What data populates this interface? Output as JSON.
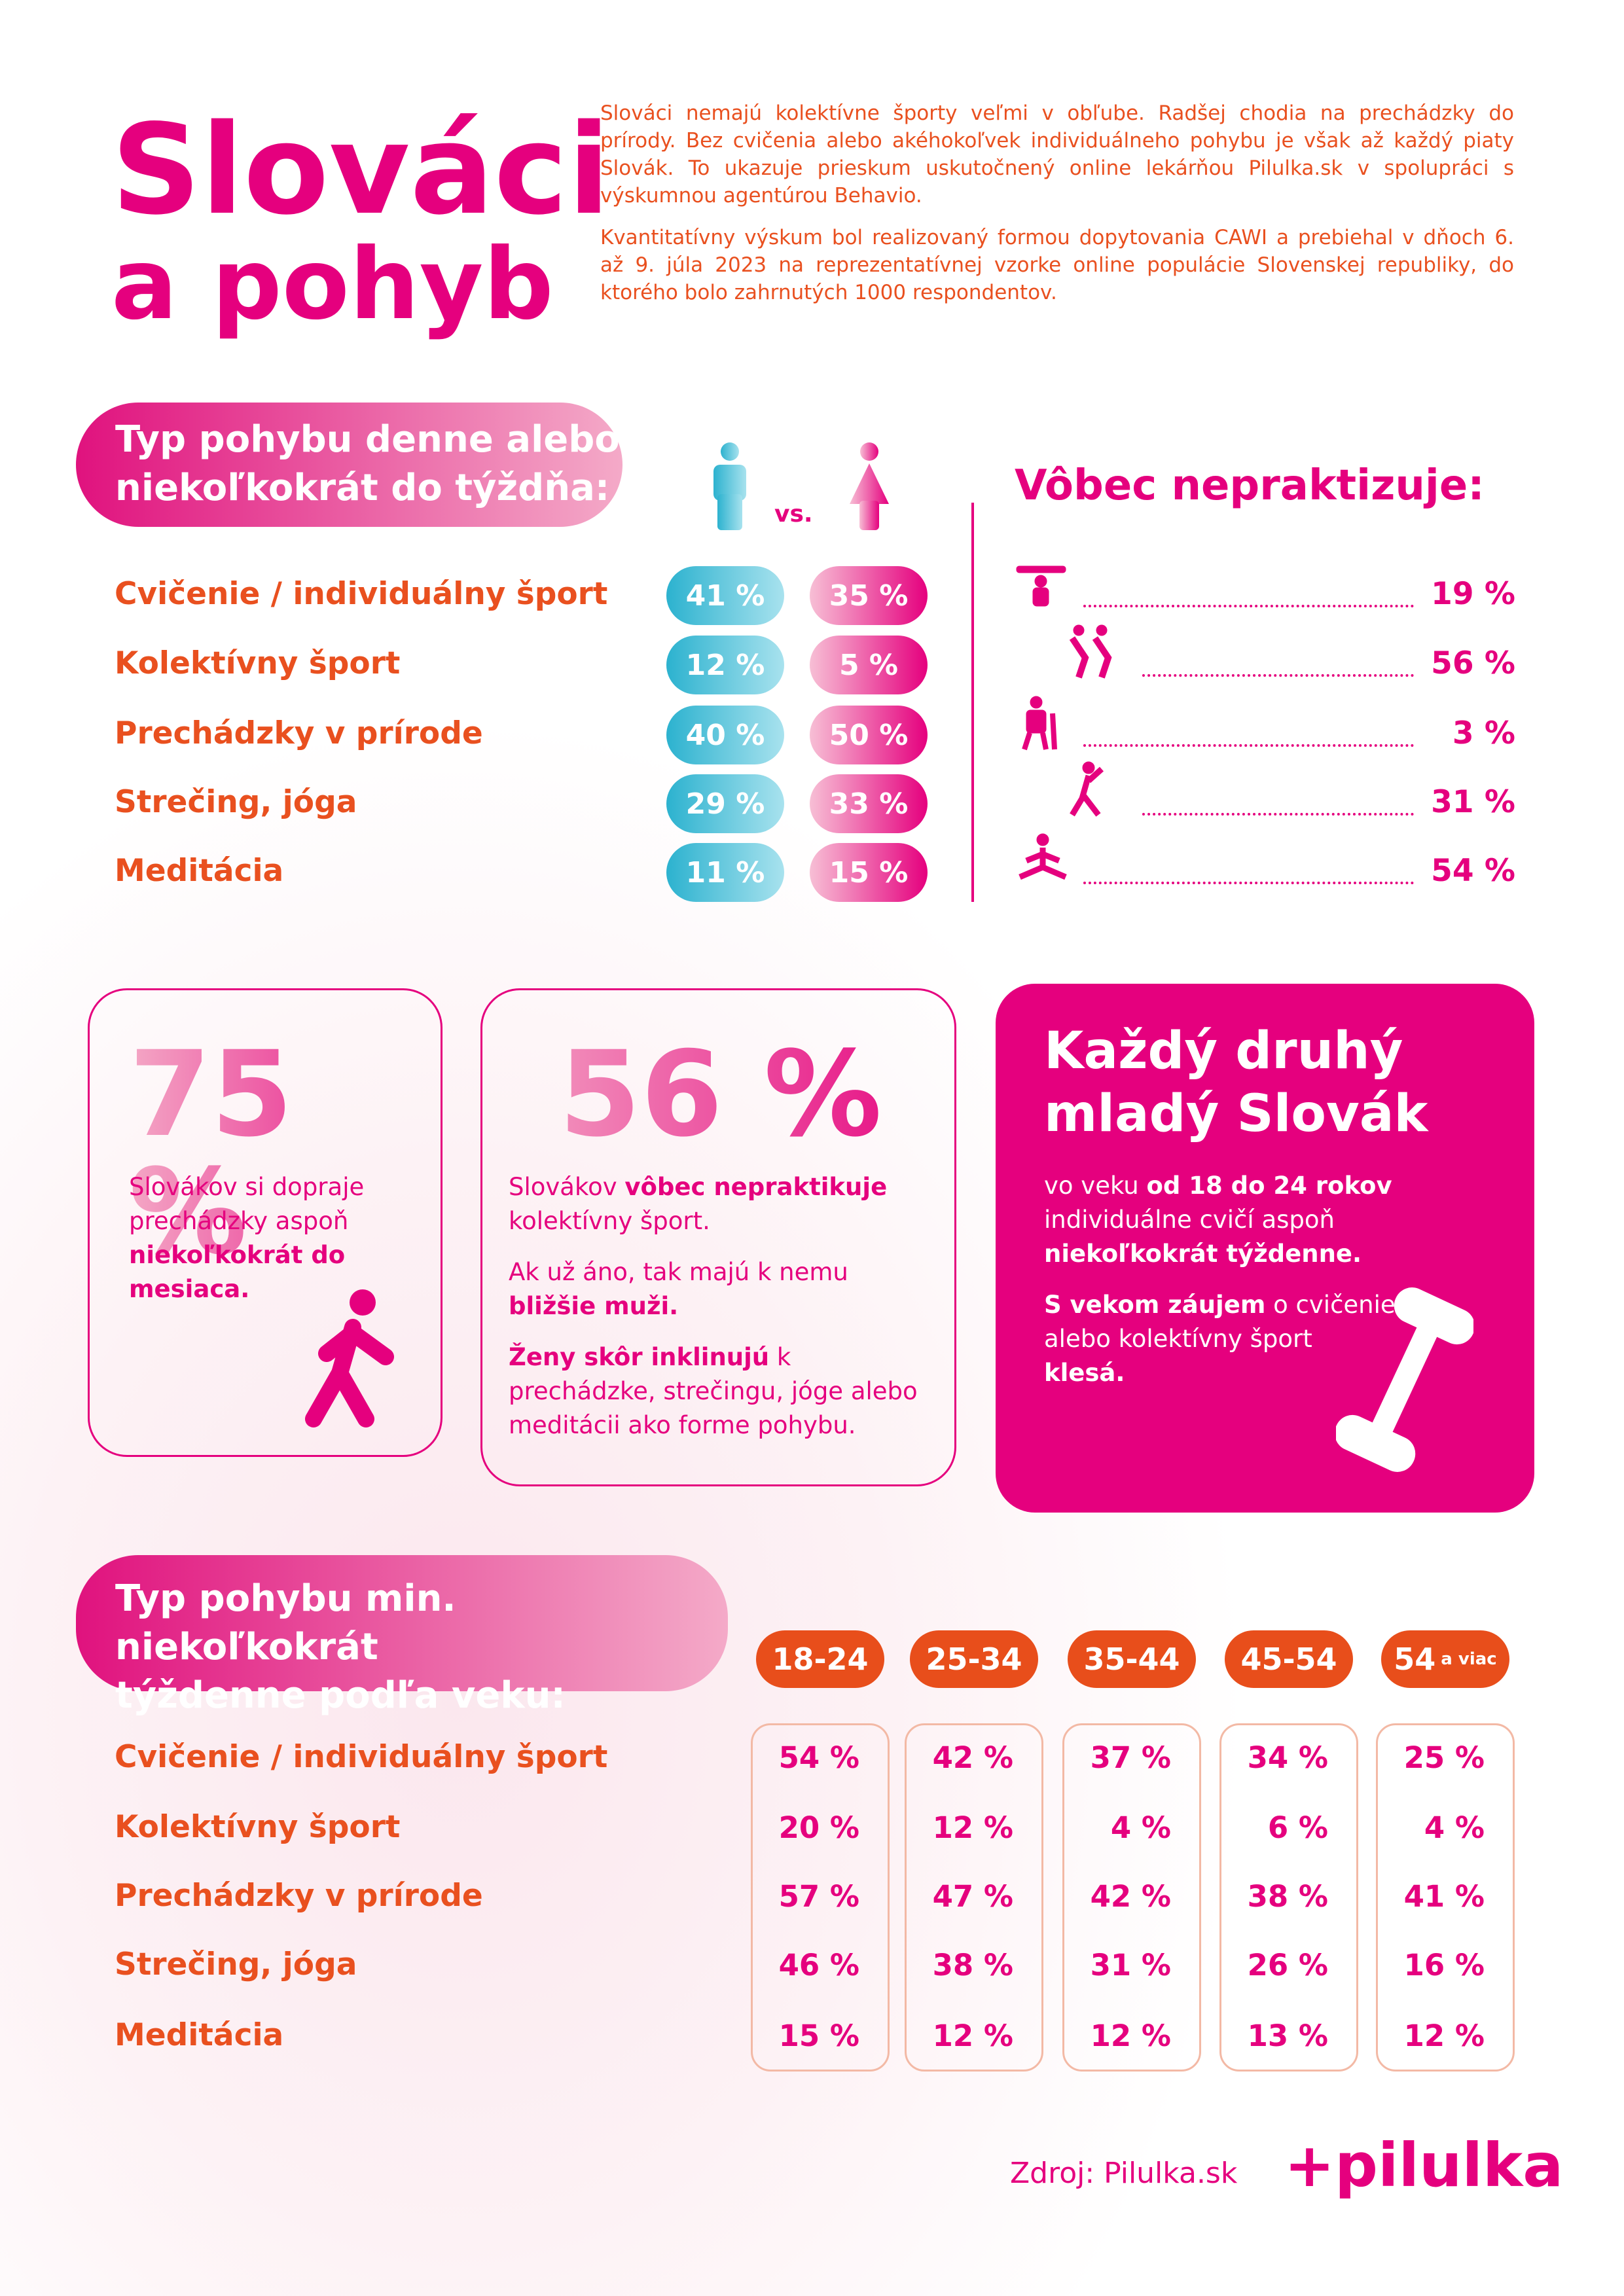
{
  "header": {
    "title_line1": "Slováci",
    "title_line2": "a pohyb",
    "intro": [
      "Slováci nemajú kolektívne športy veľmi v obľube. Radšej chodia na prechádzky do prírody. Bez cvičenia alebo akéhokoľvek individuálneho pohybu je však až každý piaty Slovák. To ukazuje prieskum uskutočnený online lekárňou Pilulka.sk v spolupráci s výskumnou agentúrou Behavio.",
      "Kvantitatívny výskum bol realizovaný formou dopytovania CAWI a prebiehal v dňoch 6. až 9. júla 2023 na reprezentatívnej vzorke online populácie Slovenskej republiky, do ktorého bolo zahrnutých 1000 respondentov."
    ]
  },
  "gender_section": {
    "heading": [
      "Typ pohybu denne alebo",
      "niekoľkokrát do týždňa:"
    ],
    "vs": "vs.",
    "rows": [
      {
        "label": "Cvičenie / individuálny šport",
        "men": "41 %",
        "women": "35 %"
      },
      {
        "label": "Kolektívny šport",
        "men": "12 %",
        "women": "5 %"
      },
      {
        "label": "Prechádzky v prírode",
        "men": "40 %",
        "women": "50 %"
      },
      {
        "label": "Strečing, jóga",
        "men": "29 %",
        "women": "33 %"
      },
      {
        "label": "Meditácia",
        "men": "11 %",
        "women": "15 %"
      }
    ],
    "never_title": "Vôbec nepraktizuje:",
    "never_values": [
      "19 %",
      "56 %",
      "3 %",
      "31 %",
      "54 %"
    ]
  },
  "cards": [
    {
      "big": "75 %",
      "paragraphs": [
        [
          {
            "text": "Slovákov si dopraje prechádzky aspoň ",
            "bold": false
          },
          {
            "text": "niekoľkokrát do mesiaca.",
            "bold": true
          }
        ]
      ]
    },
    {
      "big": "56 %",
      "paragraphs": [
        [
          {
            "text": "Slovákov ",
            "bold": false
          },
          {
            "text": "vôbec nepraktikuje",
            "bold": true
          },
          {
            "text": " kolektívny šport.",
            "bold": false
          }
        ],
        [
          {
            "text": "Ak už áno, tak majú k nemu ",
            "bold": false
          },
          {
            "text": "bližšie muži.",
            "bold": true
          }
        ],
        [
          {
            "text": "Ženy skôr inklinujú",
            "bold": true
          },
          {
            "text": " k prechádzke, strečingu, jóge alebo meditácii ako forme pohybu.",
            "bold": false
          }
        ]
      ]
    },
    {
      "title": "Každý druhý mladý Slovák",
      "paragraphs": [
        [
          {
            "text": "vo veku ",
            "bold": false
          },
          {
            "text": "od 18 do 24 rokov",
            "bold": true
          },
          {
            "text": " individuálne cvičí aspoň ",
            "bold": false
          },
          {
            "text": "niekoľkokrát týždenne.",
            "bold": true
          }
        ],
        [
          {
            "text": "S vekom záujem",
            "bold": true
          },
          {
            "text": " o cvičenie alebo kolektívny šport ",
            "bold": false
          },
          {
            "text": "klesá.",
            "bold": true
          }
        ]
      ]
    }
  ],
  "age_section": {
    "heading": [
      "Typ pohybu min. niekoľkokrát",
      "týždenne podľa veku:"
    ],
    "age_groups": [
      {
        "main": "18-24"
      },
      {
        "main": "25-34"
      },
      {
        "main": "35-44"
      },
      {
        "main": "45-54"
      },
      {
        "main": "54",
        "suffix": "a viac"
      }
    ],
    "rows": [
      {
        "label": "Cvičenie / individuálny šport",
        "values": [
          "54 %",
          "42 %",
          "37 %",
          "34 %",
          "25 %"
        ]
      },
      {
        "label": "Kolektívny šport",
        "values": [
          "20 %",
          "12 %",
          "4 %",
          "6 %",
          "4 %"
        ]
      },
      {
        "label": "Prechádzky v prírode",
        "values": [
          "57 %",
          "47 %",
          "42 %",
          "38 %",
          "41 %"
        ]
      },
      {
        "label": "Strečing, jóga",
        "values": [
          "46 %",
          "38 %",
          "31 %",
          "26 %",
          "16 %"
        ]
      },
      {
        "label": "Meditácia",
        "values": [
          "15 %",
          "12 %",
          "12 %",
          "13 %",
          "12 %"
        ]
      }
    ]
  },
  "footer": {
    "source": "Zdroj: Pilulka.sk",
    "logo": "+pilulka"
  }
}
